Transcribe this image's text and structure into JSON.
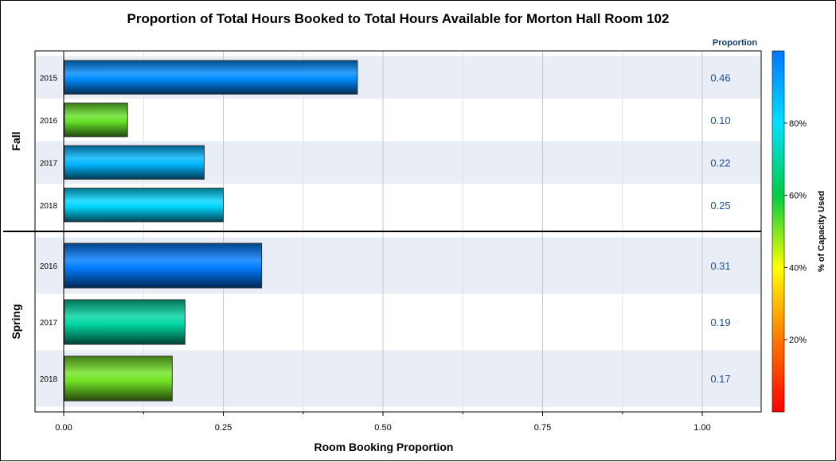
{
  "chart_data": {
    "type": "bar",
    "orientation": "horizontal",
    "title": "Proportion of Total Hours Booked to Total Hours Available for Morton Hall Room 102",
    "xlabel": "Room Booking Proportion",
    "xlim": [
      0,
      1.0
    ],
    "xticks": [
      "0.00",
      "0.25",
      "0.50",
      "0.75",
      "1.00"
    ],
    "x_tick_values": [
      0,
      0.25,
      0.5,
      0.75,
      1.0
    ],
    "grid": true,
    "value_column_header": "Proportion",
    "colorbar": {
      "label": "% of Capacity Used",
      "ticks": [
        "20%",
        "40%",
        "60%",
        "80%"
      ],
      "tick_values": [
        20,
        40,
        60,
        80
      ],
      "range": [
        0,
        100
      ],
      "colors": [
        "#ff0000",
        "#ff7700",
        "#ffff00",
        "#00cc44",
        "#00e0ff",
        "#0077ff"
      ]
    },
    "groups": [
      {
        "name": "Fall",
        "bars": [
          {
            "category": "2015",
            "value": 0.46,
            "label": "0.46",
            "capacity_pct": 96
          },
          {
            "category": "2016",
            "value": 0.1,
            "label": "0.10",
            "capacity_pct": 52
          },
          {
            "category": "2017",
            "value": 0.22,
            "label": "0.22",
            "capacity_pct": 88
          },
          {
            "category": "2018",
            "value": 0.25,
            "label": "0.25",
            "capacity_pct": 82
          }
        ]
      },
      {
        "name": "Spring",
        "bars": [
          {
            "category": "2016",
            "value": 0.31,
            "label": "0.31",
            "capacity_pct": 99
          },
          {
            "category": "2017",
            "value": 0.19,
            "label": "0.19",
            "capacity_pct": 70
          },
          {
            "category": "2018",
            "value": 0.17,
            "label": "0.17",
            "capacity_pct": 51
          }
        ]
      }
    ]
  }
}
